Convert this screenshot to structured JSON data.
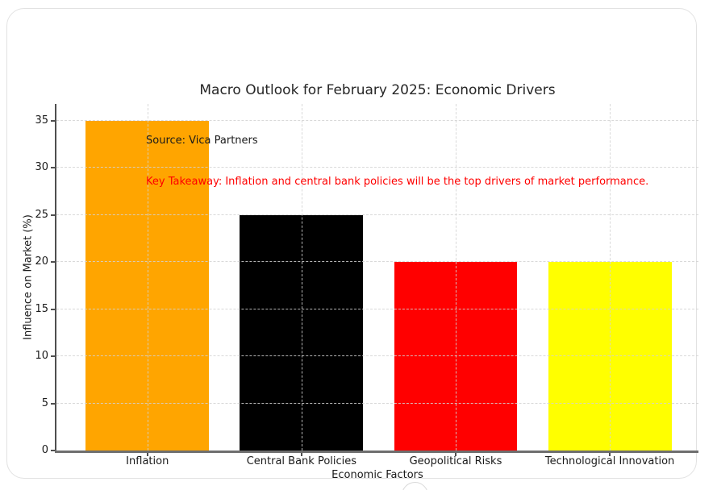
{
  "chart_data": {
    "type": "bar",
    "title": "Macro Outlook for February 2025: Economic Drivers",
    "xlabel": "Economic Factors",
    "ylabel": "Influence on Market (%)",
    "categories": [
      "Inflation",
      "Central Bank Policies",
      "Geopolitical Risks",
      "Technological Innovation"
    ],
    "values": [
      35,
      25,
      20,
      20
    ],
    "bar_colors": [
      "#ffa500",
      "#000000",
      "#ff0000",
      "#ffff00"
    ],
    "yticks": [
      0,
      5,
      10,
      15,
      20,
      25,
      30,
      35
    ],
    "ylim": [
      0,
      36.8
    ],
    "xlim": [
      -0.59,
      3.575
    ],
    "bar_width": 0.8,
    "grid": {
      "style": "dashed",
      "axisbelow": false,
      "color": "#d2d2d2"
    },
    "legend": null,
    "annotations": [
      {
        "id": "source",
        "text": "Source: Vica Partners",
        "color": "#1a1a1a"
      },
      {
        "id": "key-takeaway",
        "text": "Key Takeaway: Inflation and central bank policies will be the top drivers of market performance.",
        "color": "#ff0000"
      }
    ]
  }
}
